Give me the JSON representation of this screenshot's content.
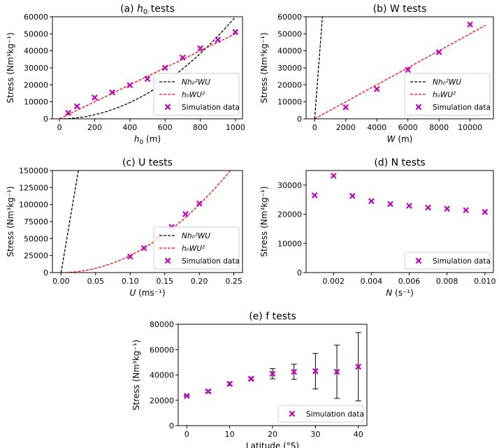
{
  "chart_data": [
    {
      "id": "a",
      "type": "line+scatter",
      "title": "(a) h₀ tests",
      "title_prefix": "(a) ",
      "title_var": "h",
      "title_sub": "0",
      "title_suffix": " tests",
      "xlabel": "h₀ (m)",
      "xlabel_var": "h",
      "xlabel_sub": "0",
      "xlabel_suffix": " (m)",
      "ylabel": "Stress (Nm³kg⁻¹)",
      "xlim": [
        -40,
        1040
      ],
      "ylim": [
        0,
        60000
      ],
      "xticks": [
        0,
        200,
        400,
        600,
        800,
        1000
      ],
      "yticks": [
        0,
        10000,
        20000,
        30000,
        40000,
        50000,
        60000
      ],
      "curves": [
        {
          "name": "Nh₀²WU",
          "color": "#000000",
          "kind": "power",
          "coef": 0.06,
          "exp": 2,
          "xmin": 0,
          "xmax": 1000
        },
        {
          "name": "h₀WU²",
          "color": "#ff0000",
          "kind": "power",
          "coef": 50,
          "exp": 1,
          "xmin": 0,
          "xmax": 1000
        }
      ],
      "scatter": {
        "name": "Simulation data",
        "color": "#bf00bf",
        "x": [
          50,
          100,
          200,
          300,
          400,
          500,
          600,
          700,
          800,
          900,
          1000
        ],
        "y": [
          3500,
          7300,
          12500,
          15500,
          19800,
          23500,
          30000,
          36000,
          41500,
          46500,
          51000
        ]
      },
      "legend": "lower right"
    },
    {
      "id": "b",
      "type": "line+scatter",
      "title": "(b) W tests",
      "xlabel": "W (m)",
      "xlabel_var": "W",
      "xlabel_suffix": " (m)",
      "ylabel": "Stress (Nm³kg⁻¹)",
      "xlim": [
        -550,
        11500
      ],
      "ylim": [
        0,
        60000
      ],
      "xticks": [
        0,
        2000,
        4000,
        6000,
        8000,
        10000
      ],
      "yticks": [
        0,
        10000,
        20000,
        30000,
        40000,
        50000,
        60000
      ],
      "curves": [
        {
          "name": "Nh₀²WU",
          "color": "#000000",
          "kind": "power",
          "coef": 120,
          "exp": 1,
          "xmin": 0,
          "xmax": 11000
        },
        {
          "name": "h₀WU²",
          "color": "#ff0000",
          "kind": "power",
          "coef": 5,
          "exp": 1,
          "xmin": 0,
          "xmax": 11000
        }
      ],
      "scatter": {
        "name": "Simulation data",
        "color": "#bf00bf",
        "x": [
          2000,
          4000,
          6000,
          8000,
          10000
        ],
        "y": [
          6800,
          17500,
          28800,
          39200,
          55500
        ]
      },
      "legend": "lower right"
    },
    {
      "id": "c",
      "type": "line+scatter",
      "title": "(c) U tests",
      "xlabel": "U (ms⁻¹)",
      "xlabel_var": "U",
      "xlabel_suffix": " (ms⁻¹)",
      "ylabel": "Stress (Nm³kg⁻¹)",
      "xlim": [
        -0.0125,
        0.2625
      ],
      "ylim": [
        0,
        150000
      ],
      "xticks": [
        0.0,
        0.05,
        0.1,
        0.15,
        0.2,
        0.25
      ],
      "xtick_decimals": 2,
      "yticks": [
        0,
        25000,
        50000,
        75000,
        100000,
        125000,
        150000
      ],
      "curves": [
        {
          "name": "Nh₀²WU",
          "color": "#000000",
          "kind": "power",
          "coef": 6000000,
          "exp": 1,
          "xmin": 0,
          "xmax": 0.25
        },
        {
          "name": "h₀WU²",
          "color": "#ff0000",
          "kind": "power",
          "coef": 2500000,
          "exp": 2,
          "xmin": 0,
          "xmax": 0.25
        }
      ],
      "scatter": {
        "name": "Simulation data",
        "color": "#bf00bf",
        "x": [
          0.1,
          0.12,
          0.14,
          0.16,
          0.18,
          0.2
        ],
        "y": [
          23500,
          36000,
          51000,
          67000,
          86000,
          101500
        ]
      },
      "legend": "lower right"
    },
    {
      "id": "d",
      "type": "scatter",
      "title": "(d) N tests",
      "xlabel": "N (s⁻¹)",
      "xlabel_var": "N",
      "xlabel_suffix": " (s⁻¹)",
      "ylabel": "Stress (Nm³kg⁻¹)",
      "xlim": [
        0.00055,
        0.01045
      ],
      "ylim": [
        0,
        35000
      ],
      "xticks": [
        0.002,
        0.004,
        0.006,
        0.008,
        0.01
      ],
      "xtick_decimals": 3,
      "yticks": [
        0,
        10000,
        20000,
        30000
      ],
      "curves": [],
      "scatter": {
        "name": "Simulation data",
        "color": "#bf00bf",
        "x": [
          0.001,
          0.002,
          0.003,
          0.004,
          0.005,
          0.006,
          0.007,
          0.008,
          0.009,
          0.01
        ],
        "y": [
          26500,
          33200,
          26300,
          24500,
          23500,
          22900,
          22300,
          21900,
          21400,
          20800
        ]
      },
      "legend": "lower right"
    },
    {
      "id": "e",
      "type": "errorbar",
      "title": "(e) f tests",
      "xlabel": "Latitude (°S)",
      "ylabel": "Stress (Nm³kg⁻¹)",
      "xlim": [
        -2,
        42
      ],
      "ylim": [
        0,
        80000
      ],
      "xticks": [
        0,
        10,
        20,
        30,
        40
      ],
      "yticks": [
        0,
        20000,
        40000,
        60000,
        80000
      ],
      "curves": [],
      "scatter": {
        "name": "Simulation data",
        "color": "#bf00bf",
        "x": [
          0,
          5,
          10,
          15,
          20,
          25,
          30,
          35,
          40
        ],
        "y": [
          23500,
          27000,
          33000,
          37000,
          41000,
          42500,
          43000,
          42500,
          46500
        ],
        "err": [
          500,
          800,
          1200,
          1000,
          4000,
          6000,
          14000,
          21000,
          27000
        ]
      },
      "legend": "lower right"
    }
  ]
}
